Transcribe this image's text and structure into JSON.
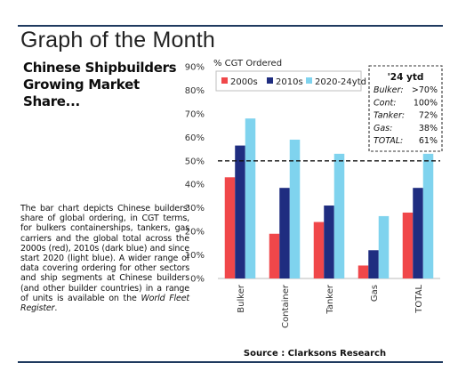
{
  "page": {
    "title": "Graph of the Month",
    "subtitle_lines": [
      "Chinese Shipbuilders",
      "Growing Market",
      "Share..."
    ],
    "description": "The bar chart depicts Chinese builders' share of global ordering, in CGT terms, for bulkers containerships, tankers, gas carriers and the global total across the 2000s (red), 2010s (dark blue) and since start 2020 (light blue). A wider range of data covering ordering for other sectors and ship segments at Chinese builders (and other builder countries) in a range of units is available on the ",
    "description_link": "World Fleet Register",
    "description_end": ".",
    "source": "Source : Clarksons Research"
  },
  "chart_data": {
    "type": "bar",
    "ylabel": "% CGT Ordered",
    "ylim": [
      0,
      90
    ],
    "yticks": [
      0,
      10,
      20,
      30,
      40,
      50,
      60,
      70,
      80,
      90
    ],
    "ytick_labels": [
      "0%",
      "10%",
      "20%",
      "30%",
      "40%",
      "50%",
      "60%",
      "70%",
      "80%",
      "90%"
    ],
    "categories": [
      "Bulker",
      "Container",
      "Tanker",
      "Gas",
      "TOTAL"
    ],
    "series": [
      {
        "name": "2000s",
        "color": "#f0474a",
        "values": [
          43,
          19,
          24,
          5.5,
          28
        ]
      },
      {
        "name": "2010s",
        "color": "#1f2d80",
        "values": [
          56.5,
          38.5,
          31,
          12,
          38.5
        ]
      },
      {
        "name": "2020-24ytd",
        "color": "#7fd3ee",
        "values": [
          68,
          59,
          53,
          26.5,
          53
        ]
      }
    ],
    "reference_line": {
      "value": 50,
      "style": "dashed"
    },
    "grid": false,
    "legend": "top-left",
    "annotation_box": {
      "title": "'24 ytd",
      "rows": [
        {
          "label": "Bulker:",
          "value": ">70%"
        },
        {
          "label": "Cont:",
          "value": "100%"
        },
        {
          "label": "Tanker:",
          "value": "72%"
        },
        {
          "label": "Gas:",
          "value": "38%"
        },
        {
          "label": "TOTAL:",
          "value": "61%"
        }
      ]
    }
  }
}
